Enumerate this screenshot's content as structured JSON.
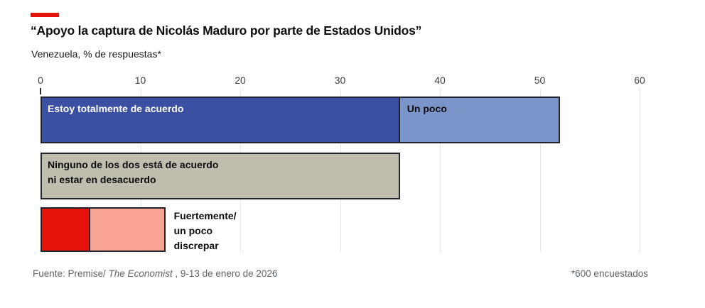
{
  "header": {
    "brand_color": "#e3120b",
    "title": "“Apoyo la captura de Nicolás Maduro por parte de Estados Unidos”",
    "subtitle": "Venezuela, % de respuestas*"
  },
  "footer": {
    "source_prefix": "Fuente: Premise/ ",
    "source_italic": "The Economist",
    "source_suffix": " , 9-13 de enero de 2026",
    "note": "*600 encuestados"
  },
  "chart_data": {
    "type": "bar",
    "orientation": "horizontal",
    "title": "“Apoyo la captura de Nicolás Maduro por parte de Estados Unidos”",
    "subtitle": "Venezuela, % de respuestas*",
    "xlabel": "",
    "ylabel": "% de respuestas",
    "xlim": [
      0,
      60
    ],
    "x_ticks": [
      0,
      10,
      20,
      30,
      40,
      50,
      60
    ],
    "grid": true,
    "legend_position": "none",
    "colors": {
      "strongly_agree": "#3b4fa3",
      "somewhat_agree": "#7b94ca",
      "neither": "#bfbeae",
      "strongly_disagree": "#e5130a",
      "somewhat_disagree": "#f9a392",
      "bar_border": "#23232e",
      "gridline": "#e9e9e9"
    },
    "rows": [
      {
        "segments": [
          {
            "name": "Estoy totalmente de acuerdo",
            "value": 36,
            "color": "#3b4fa3",
            "label_lines": [
              "Estoy totalmente de acuerdo"
            ],
            "label_color": "#ffffff"
          },
          {
            "name": "Un poco",
            "value": 16,
            "color": "#7b94ca",
            "label_lines": [
              "Un poco"
            ],
            "label_color": "#0d0d0d"
          }
        ]
      },
      {
        "segments": [
          {
            "name": "Ninguno de los dos está de acuerdo ni estar en desacuerdo",
            "value": 36,
            "color": "#bfbeae",
            "label_lines": [
              "Ninguno de los dos está de acuerdo",
              "ni estar en desacuerdo"
            ],
            "label_color": "#0d0d0d"
          }
        ]
      },
      {
        "segments": [
          {
            "name": "Fuertemente discrepar",
            "value": 5,
            "color": "#e5130a"
          },
          {
            "name": "Un poco discrepar",
            "value": 7.5,
            "color": "#f9a392"
          }
        ],
        "outside_label_lines": [
          "Fuertemente/",
          "un poco",
          "discrepar"
        ]
      }
    ]
  }
}
